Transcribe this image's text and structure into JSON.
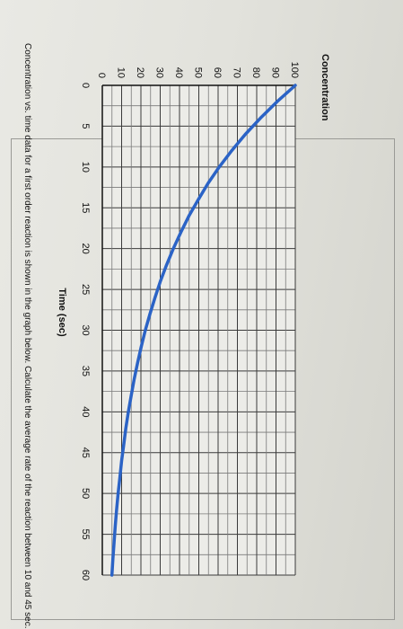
{
  "question": "Concentration vs. time data for a first order reaction is shown in the graph below. Calculate the average rate of the reaction between 10 and 45 sec.",
  "chart_data": {
    "type": "line",
    "title": "",
    "xlabel": "Time (sec)",
    "ylabel": "Concentration",
    "xlim": [
      0,
      60
    ],
    "ylim": [
      0,
      100
    ],
    "x_ticks": [
      0,
      5,
      10,
      15,
      20,
      25,
      30,
      35,
      40,
      45,
      50,
      55,
      60
    ],
    "y_ticks": [
      0,
      10,
      20,
      30,
      40,
      50,
      60,
      70,
      80,
      90,
      100
    ],
    "grid": true,
    "series": [
      {
        "name": "",
        "color": "#2b63c6",
        "x": [
          0,
          2,
          4,
          6,
          8,
          10,
          12,
          14,
          16,
          18,
          20,
          22,
          24,
          26,
          28,
          30,
          32,
          34,
          36,
          38,
          40,
          42,
          44,
          46,
          48,
          50,
          52,
          54,
          56,
          58,
          60
        ],
        "y": [
          100,
          90.5,
          82.0,
          74.1,
          67.0,
          60.6,
          54.8,
          49.7,
          44.9,
          40.7,
          36.8,
          33.3,
          30.1,
          27.3,
          24.7,
          22.3,
          20.2,
          18.3,
          16.5,
          15.0,
          13.5,
          12.2,
          11.1,
          10.0,
          9.1,
          8.2,
          7.4,
          6.7,
          6.1,
          5.5,
          5.0
        ]
      }
    ]
  }
}
